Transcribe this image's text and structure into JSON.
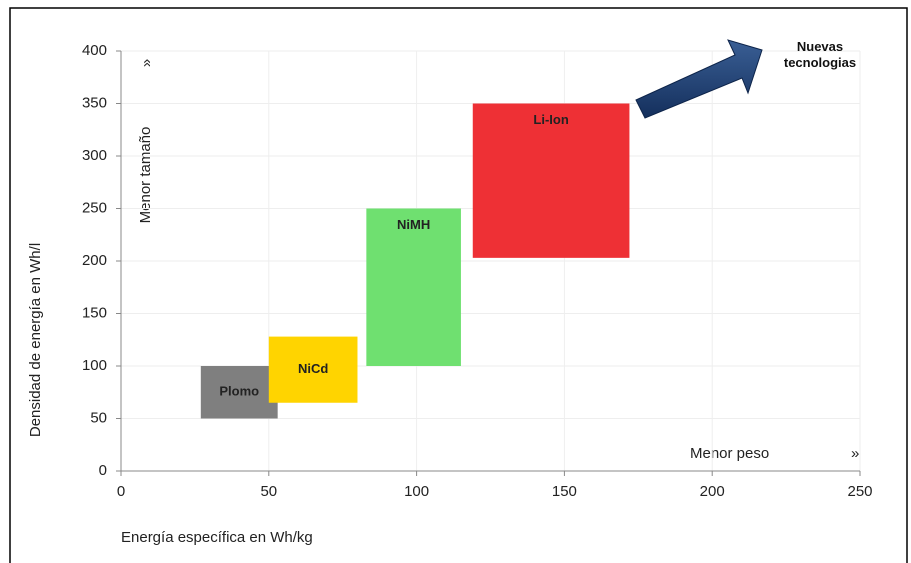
{
  "chart_data": {
    "type": "range-rect",
    "x_label": "Energía específica en Wh/kg",
    "y_label": "Densidad de energía en Wh/l",
    "xlim": [
      0,
      250
    ],
    "xticks": [
      0,
      50,
      100,
      150,
      200,
      250
    ],
    "ylim": [
      0,
      400
    ],
    "yticks": [
      0,
      50,
      100,
      150,
      200,
      250,
      300,
      350,
      400
    ],
    "grid": true,
    "series": [
      {
        "name": "Plomo",
        "color": "#7f7f7f",
        "x": [
          27,
          53
        ],
        "y": [
          50,
          100
        ]
      },
      {
        "name": "NiCd",
        "color": "#ffd400",
        "x": [
          50,
          80
        ],
        "y": [
          65,
          128
        ]
      },
      {
        "name": "NiMH",
        "color": "#6fe070",
        "x": [
          83,
          115
        ],
        "y": [
          100,
          250
        ]
      },
      {
        "name": "Li-Ion",
        "color": "#ee3035",
        "x": [
          119,
          172
        ],
        "y": [
          203,
          350
        ]
      }
    ],
    "annotations": {
      "size": "Menor tamaño",
      "size_arrow": "»",
      "weight": "Menor peso",
      "weight_arrow": "»",
      "new_tech": "Nuevas tecnologias"
    }
  }
}
